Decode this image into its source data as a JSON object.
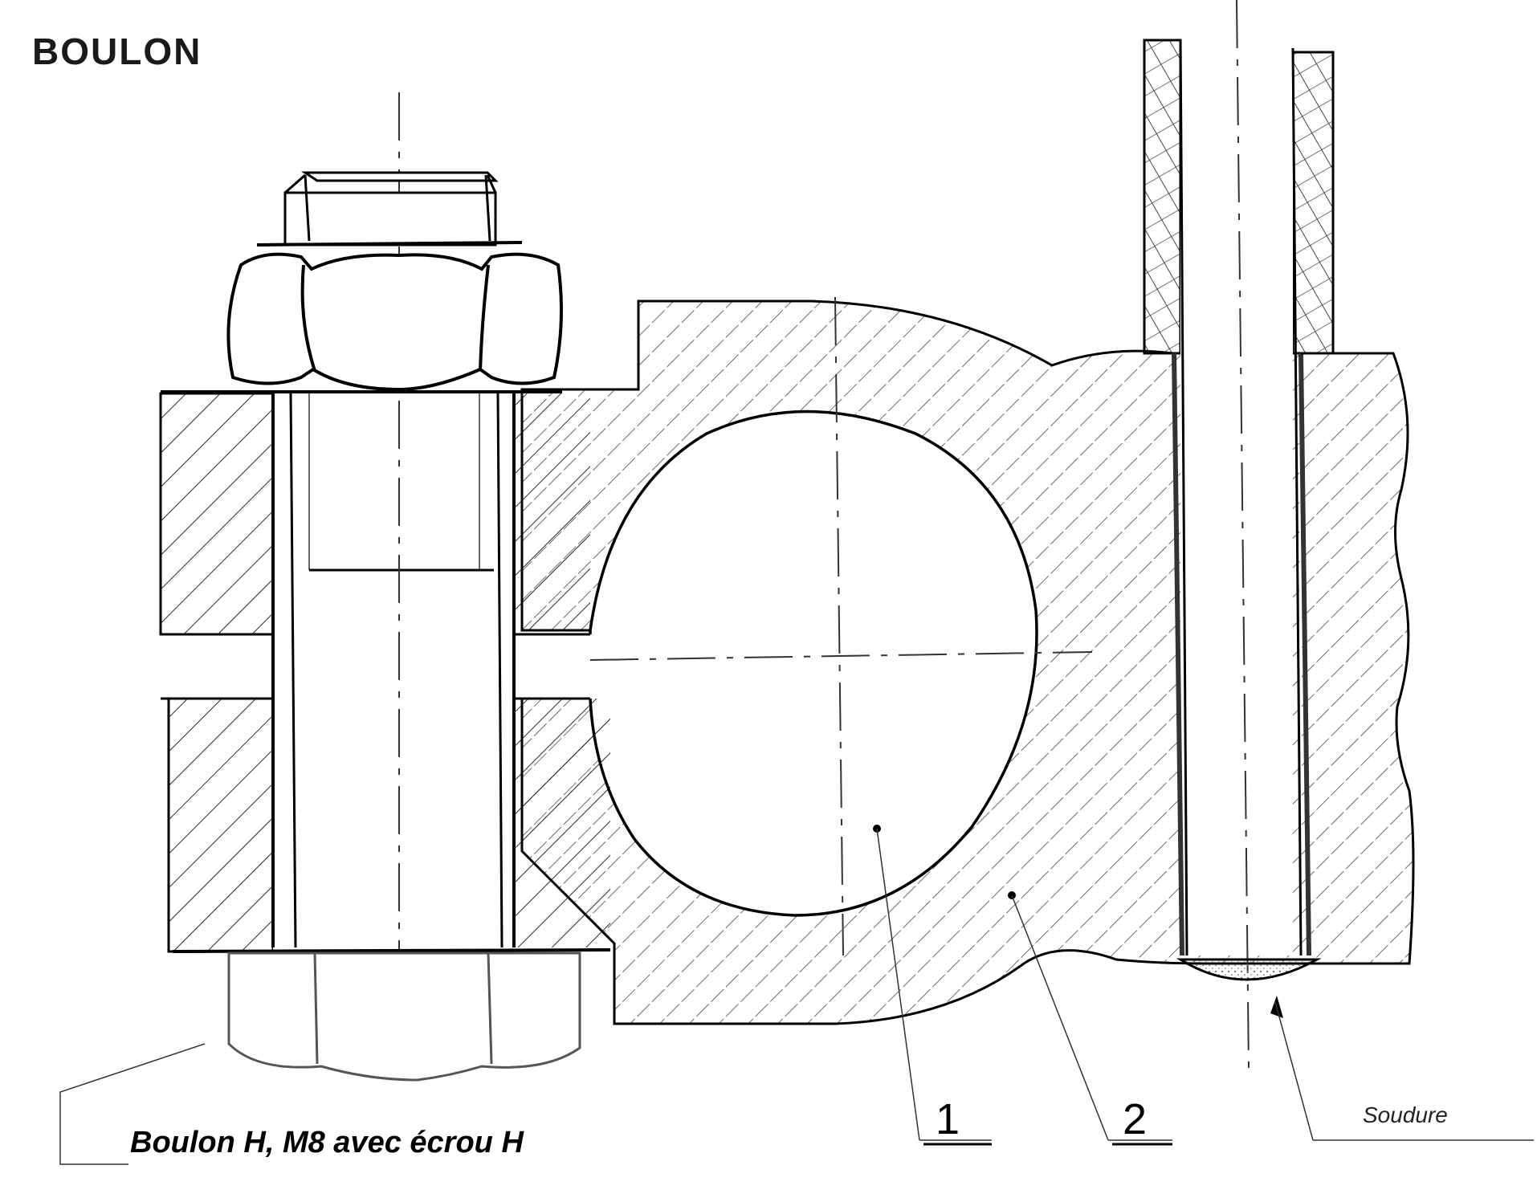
{
  "title": "BOULON",
  "caption": "Boulon H, M8 avec écrou H",
  "labels": {
    "part1": "1",
    "part2": "2",
    "weld": "Soudure"
  }
}
